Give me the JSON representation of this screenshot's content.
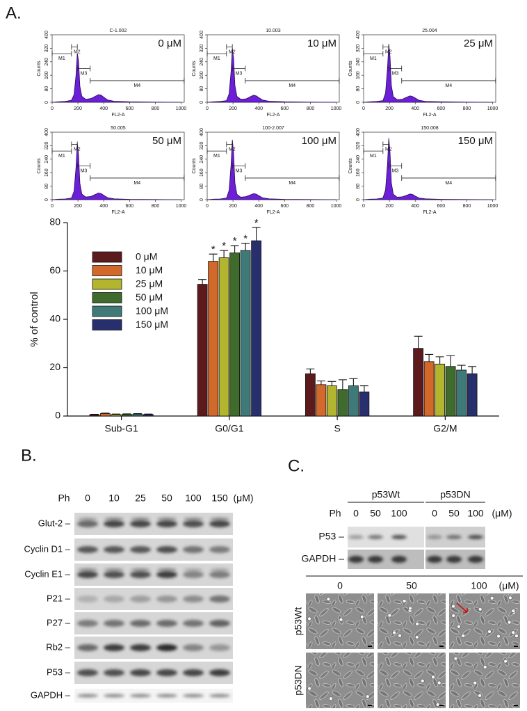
{
  "panel_labels": [
    "A.",
    "B.",
    "C."
  ],
  "chart_data": [
    {
      "type": "area",
      "title": "C-1.002",
      "annotation": "0 μM",
      "xlabel": "FL2-A",
      "ylabel": "Counts",
      "color": "#6b1fd6",
      "x": [
        0,
        50,
        100,
        150,
        170,
        185,
        195,
        205,
        215,
        230,
        260,
        300,
        340,
        360,
        380,
        400,
        430,
        480,
        600,
        800,
        1000
      ],
      "values": [
        0,
        3,
        5,
        12,
        45,
        160,
        290,
        245,
        95,
        35,
        18,
        22,
        38,
        45,
        42,
        30,
        14,
        6,
        3,
        1,
        0
      ],
      "xlim": [
        0,
        1024
      ],
      "ylim": [
        0,
        400
      ],
      "xticks": [
        0,
        200,
        400,
        600,
        800,
        1000
      ],
      "yticks": [
        0,
        80,
        160,
        240,
        320,
        400
      ],
      "markers": [
        {
          "label": "M1",
          "range": [
            0,
            150
          ]
        },
        {
          "label": "M2",
          "range": [
            150,
            195
          ]
        },
        {
          "label": "M3",
          "range": [
            195,
            295
          ]
        },
        {
          "label": "M4",
          "range": [
            295,
            1023
          ]
        }
      ]
    },
    {
      "type": "area",
      "title": "10.003",
      "annotation": "10 μM",
      "xlabel": "FL2-A",
      "ylabel": "Counts",
      "color": "#6b1fd6",
      "x": [
        0,
        50,
        100,
        150,
        170,
        185,
        195,
        205,
        215,
        230,
        260,
        300,
        340,
        360,
        380,
        400,
        430,
        480,
        600,
        800,
        1000
      ],
      "values": [
        0,
        3,
        5,
        10,
        50,
        180,
        320,
        260,
        100,
        35,
        18,
        20,
        35,
        42,
        38,
        28,
        13,
        6,
        3,
        1,
        0
      ],
      "xlim": [
        0,
        1024
      ],
      "ylim": [
        0,
        400
      ],
      "xticks": [
        0,
        200,
        400,
        600,
        800,
        1000
      ],
      "yticks": [
        0,
        80,
        160,
        240,
        320,
        400
      ],
      "markers": [
        {
          "label": "M1",
          "range": [
            0,
            150
          ]
        },
        {
          "label": "M2",
          "range": [
            150,
            195
          ]
        },
        {
          "label": "M3",
          "range": [
            195,
            295
          ]
        },
        {
          "label": "M4",
          "range": [
            295,
            1023
          ]
        }
      ]
    },
    {
      "type": "area",
      "title": "25.004",
      "annotation": "25 μM",
      "xlabel": "FL2-A",
      "ylabel": "Counts",
      "color": "#6b1fd6",
      "x": [
        0,
        50,
        100,
        150,
        170,
        185,
        195,
        205,
        215,
        230,
        260,
        300,
        340,
        360,
        380,
        400,
        430,
        480,
        600,
        800,
        1000
      ],
      "values": [
        0,
        3,
        5,
        10,
        55,
        200,
        345,
        270,
        100,
        33,
        16,
        18,
        32,
        38,
        34,
        25,
        12,
        5,
        3,
        1,
        0
      ],
      "xlim": [
        0,
        1024
      ],
      "ylim": [
        0,
        400
      ],
      "xticks": [
        0,
        200,
        400,
        600,
        800,
        1000
      ],
      "yticks": [
        0,
        80,
        160,
        240,
        320,
        400
      ],
      "markers": [
        {
          "label": "M1",
          "range": [
            0,
            150
          ]
        },
        {
          "label": "M2",
          "range": [
            150,
            195
          ]
        },
        {
          "label": "M3",
          "range": [
            195,
            295
          ]
        },
        {
          "label": "M4",
          "range": [
            295,
            1023
          ]
        }
      ]
    },
    {
      "type": "area",
      "title": "50.005",
      "annotation": "50 μM",
      "xlabel": "FL2-A",
      "ylabel": "Counts",
      "color": "#6b1fd6",
      "x": [
        0,
        50,
        100,
        150,
        170,
        185,
        195,
        205,
        215,
        230,
        260,
        300,
        340,
        360,
        380,
        400,
        430,
        480,
        600,
        800,
        1000
      ],
      "values": [
        0,
        3,
        4,
        10,
        50,
        190,
        335,
        265,
        98,
        33,
        16,
        19,
        33,
        40,
        36,
        26,
        12,
        5,
        2,
        1,
        0
      ],
      "xlim": [
        0,
        1024
      ],
      "ylim": [
        0,
        400
      ],
      "xticks": [
        0,
        200,
        400,
        600,
        800,
        1000
      ],
      "yticks": [
        0,
        80,
        160,
        240,
        320,
        400
      ],
      "markers": [
        {
          "label": "M1",
          "range": [
            0,
            150
          ]
        },
        {
          "label": "M2",
          "range": [
            150,
            195
          ]
        },
        {
          "label": "M3",
          "range": [
            195,
            295
          ]
        },
        {
          "label": "M4",
          "range": [
            295,
            1023
          ]
        }
      ]
    },
    {
      "type": "area",
      "title": "100-2.007",
      "annotation": "100 μM",
      "xlabel": "FL2-A",
      "ylabel": "Counts",
      "color": "#6b1fd6",
      "x": [
        0,
        50,
        100,
        150,
        170,
        185,
        195,
        205,
        215,
        230,
        260,
        300,
        340,
        360,
        380,
        400,
        430,
        480,
        600,
        800,
        1000
      ],
      "values": [
        0,
        3,
        4,
        10,
        55,
        205,
        355,
        275,
        100,
        32,
        15,
        18,
        30,
        36,
        33,
        24,
        11,
        5,
        2,
        1,
        0
      ],
      "xlim": [
        0,
        1024
      ],
      "ylim": [
        0,
        400
      ],
      "xticks": [
        0,
        200,
        400,
        600,
        800,
        1000
      ],
      "yticks": [
        0,
        80,
        160,
        240,
        320,
        400
      ],
      "markers": [
        {
          "label": "M1",
          "range": [
            0,
            150
          ]
        },
        {
          "label": "M2",
          "range": [
            150,
            195
          ]
        },
        {
          "label": "M3",
          "range": [
            195,
            295
          ]
        },
        {
          "label": "M4",
          "range": [
            295,
            1023
          ]
        }
      ]
    },
    {
      "type": "area",
      "title": "150.008",
      "annotation": "150 μM",
      "xlabel": "FL2-A",
      "ylabel": "Counts",
      "color": "#6b1fd6",
      "x": [
        0,
        50,
        100,
        150,
        170,
        185,
        195,
        205,
        215,
        230,
        260,
        300,
        340,
        360,
        380,
        400,
        430,
        480,
        600,
        800,
        1000
      ],
      "values": [
        0,
        3,
        4,
        10,
        58,
        210,
        365,
        280,
        100,
        32,
        15,
        17,
        28,
        34,
        31,
        22,
        10,
        5,
        2,
        1,
        0
      ],
      "xlim": [
        0,
        1024
      ],
      "ylim": [
        0,
        400
      ],
      "xticks": [
        0,
        200,
        400,
        600,
        800,
        1000
      ],
      "yticks": [
        0,
        80,
        160,
        240,
        320,
        400
      ],
      "markers": [
        {
          "label": "M1",
          "range": [
            0,
            150
          ]
        },
        {
          "label": "M2",
          "range": [
            150,
            195
          ]
        },
        {
          "label": "M3",
          "range": [
            195,
            295
          ]
        },
        {
          "label": "M4",
          "range": [
            295,
            1023
          ]
        }
      ]
    },
    {
      "type": "bar",
      "ylabel": "% of control",
      "categories": [
        "Sub-G1",
        "G0/G1",
        "S",
        "G2/M"
      ],
      "ylim": [
        0,
        80
      ],
      "yticks": [
        0,
        20,
        40,
        60,
        80
      ],
      "legend": "upper left",
      "series": [
        {
          "name": "0 μM",
          "color": "#5c1a1d",
          "values": [
            0.5,
            54.5,
            17.5,
            28
          ],
          "errors": [
            0.2,
            2,
            2,
            5
          ]
        },
        {
          "name": "10 μM",
          "color": "#d2692a",
          "values": [
            1,
            64,
            13,
            22.5
          ],
          "errors": [
            0.2,
            3,
            1.5,
            3
          ],
          "annotations": [
            null,
            "*",
            null,
            null
          ]
        },
        {
          "name": "25 μM",
          "color": "#b3b52e",
          "values": [
            0.6,
            65.5,
            12.5,
            21.5
          ],
          "errors": [
            0.2,
            3,
            1.8,
            3
          ],
          "annotations": [
            null,
            "*",
            null,
            null
          ]
        },
        {
          "name": "50 μM",
          "color": "#3f6b2c",
          "values": [
            0.7,
            67.5,
            11,
            20.5
          ],
          "errors": [
            0.2,
            3,
            4,
            4.5
          ],
          "annotations": [
            null,
            "*",
            null,
            null
          ]
        },
        {
          "name": "100 μM",
          "color": "#3f7a78",
          "values": [
            0.8,
            68.5,
            12.5,
            19
          ],
          "errors": [
            0.2,
            3,
            3,
            2
          ],
          "annotations": [
            null,
            "*",
            null,
            null
          ]
        },
        {
          "name": "150 μM",
          "color": "#272f6d",
          "values": [
            0.6,
            72.5,
            10,
            17.5
          ],
          "errors": [
            0.2,
            5.5,
            2.5,
            3
          ],
          "annotations": [
            null,
            "*",
            null,
            null
          ]
        }
      ]
    }
  ],
  "blot_b": {
    "treatment": "Ph",
    "doses": [
      "0",
      "10",
      "25",
      "50",
      "100",
      "150"
    ],
    "unit": "(μM)",
    "rows": [
      "Glut-2 –",
      "Cyclin D1 –",
      "Cyclin E1 –",
      "P21 –",
      "P27 –",
      "Rb2 –",
      "P53 –",
      "GAPDH –"
    ]
  },
  "blot_c": {
    "groups": [
      "p53Wt",
      "p53DN"
    ],
    "treatment": "Ph",
    "doses": [
      "0",
      "50",
      "100"
    ],
    "unit": "(μM)",
    "rows": [
      "P53 –",
      "GAPDH –"
    ]
  },
  "images_c": {
    "doses": [
      "0",
      "50",
      "100"
    ],
    "unit": "(μM)",
    "rows": [
      "p53Wt",
      "p53DN"
    ]
  }
}
